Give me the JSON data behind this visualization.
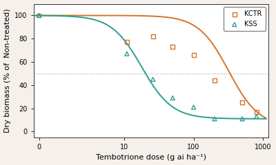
{
  "title": "",
  "xlabel": "Tembotrione dose (g ai ha⁻¹)",
  "ylabel": "Dry biomass (% of  Non-treated)",
  "xlim_log": [
    0.5,
    1200
  ],
  "ylim": [
    -5,
    110
  ],
  "yticks": [
    0,
    20,
    40,
    60,
    80,
    100
  ],
  "hline_y": 50,
  "hline_color": "#aaaaaa",
  "plot_bg": "#ffffff",
  "fig_bg": "#f5f0eb",
  "KCTR": {
    "color": "#d4732a",
    "scatter_x": [
      0.6,
      11,
      26,
      50,
      100,
      200,
      500,
      800
    ],
    "scatter_y": [
      100,
      77,
      82,
      73,
      66,
      44,
      25,
      17
    ],
    "curve_params": {
      "C": 100,
      "D": 4,
      "b": 2.0,
      "e": 320
    },
    "marker": "s",
    "marker_size": 18,
    "label": "KCTR"
  },
  "KSS": {
    "color": "#2a9d8f",
    "scatter_x": [
      0.6,
      11,
      26,
      50,
      100,
      200,
      500,
      800
    ],
    "scatter_y": [
      100,
      67,
      45,
      29,
      21,
      11,
      11,
      13
    ],
    "curve_params": {
      "C": 100,
      "D": 11,
      "b": 2.0,
      "e": 18
    },
    "marker": "^",
    "marker_size": 18,
    "label": "KSS"
  },
  "legend_loc": "upper right",
  "figsize": [
    4.0,
    2.4
  ],
  "dpi": 100
}
